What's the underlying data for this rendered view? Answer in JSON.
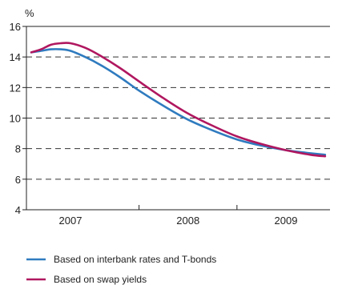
{
  "chart_data": {
    "type": "line",
    "unit_label": "%",
    "ylim": [
      4,
      16
    ],
    "y_ticks": [
      4,
      6,
      8,
      10,
      12,
      14,
      16
    ],
    "xlim": [
      2006.85,
      2009.95
    ],
    "x_year_labels": [
      {
        "label": "2007",
        "at": 2007.3
      },
      {
        "label": "2008",
        "at": 2008.5
      },
      {
        "label": "2009",
        "at": 2009.5
      }
    ],
    "x_ticks": [
      2008.0,
      2009.0
    ],
    "grid": "dashed horizontal at 6, 8, 10, 12, 14",
    "legend_position": "bottom",
    "series": [
      {
        "name": "Based on interbank rates and T-bonds",
        "color": "#2f7bbf",
        "x": [
          2006.9,
          2007.0,
          2007.1,
          2007.2,
          2007.3,
          2007.45,
          2007.6,
          2007.8,
          2008.0,
          2008.25,
          2008.5,
          2008.75,
          2009.0,
          2009.25,
          2009.5,
          2009.75,
          2009.9
        ],
        "y": [
          14.3,
          14.4,
          14.5,
          14.5,
          14.4,
          14.0,
          13.5,
          12.7,
          11.8,
          10.8,
          9.9,
          9.2,
          8.6,
          8.2,
          7.9,
          7.7,
          7.6
        ]
      },
      {
        "name": "Based on swap yields",
        "color": "#b0175f",
        "x": [
          2006.9,
          2007.0,
          2007.1,
          2007.2,
          2007.3,
          2007.45,
          2007.6,
          2007.8,
          2008.0,
          2008.25,
          2008.5,
          2008.75,
          2009.0,
          2009.25,
          2009.5,
          2009.75,
          2009.9
        ],
        "y": [
          14.3,
          14.5,
          14.8,
          14.9,
          14.9,
          14.6,
          14.1,
          13.3,
          12.4,
          11.3,
          10.3,
          9.5,
          8.8,
          8.3,
          7.9,
          7.6,
          7.5
        ]
      }
    ]
  }
}
